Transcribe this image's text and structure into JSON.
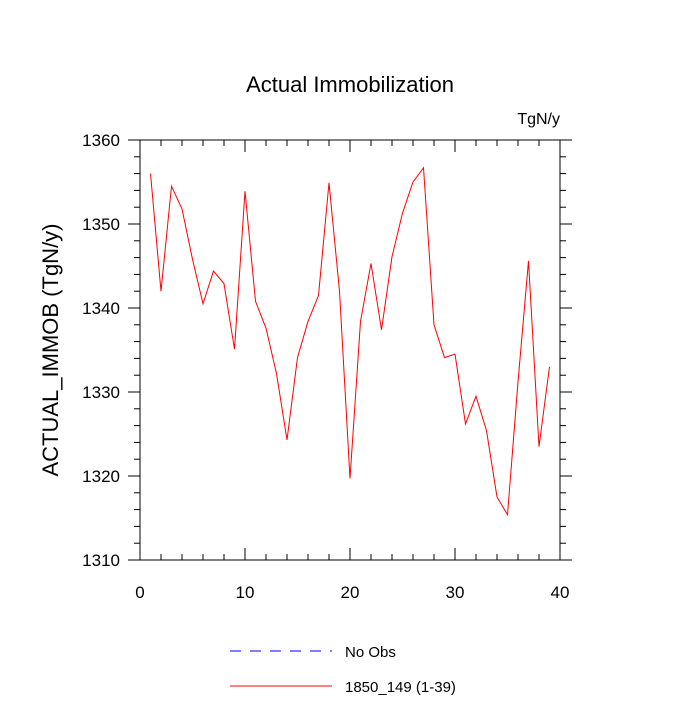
{
  "chart_data": {
    "type": "line",
    "title": "Actual Immobilization",
    "units_label": "TgN/y",
    "xlabel": "",
    "ylabel": "ACTUAL_IMMOB  (TgN/y)",
    "xlim": [
      0,
      40
    ],
    "ylim": [
      1310,
      1360
    ],
    "x_ticks": [
      0,
      10,
      20,
      30,
      40
    ],
    "y_ticks": [
      1310,
      1320,
      1330,
      1340,
      1350,
      1360
    ],
    "grid": false,
    "legend_position": "bottom",
    "legend": [
      {
        "label": "No Obs",
        "color": "#0000ff",
        "style": "dashed"
      },
      {
        "label": "1850_149 (1-39)",
        "color": "#ff0000",
        "style": "solid"
      }
    ],
    "series": [
      {
        "name": "1850_149 (1-39)",
        "color": "#ff0000",
        "x": [
          1,
          2,
          3,
          4,
          5,
          6,
          7,
          8,
          9,
          10,
          11,
          12,
          13,
          14,
          15,
          16,
          17,
          18,
          19,
          20,
          21,
          22,
          23,
          24,
          25,
          26,
          27,
          28,
          29,
          30,
          31,
          32,
          33,
          34,
          35,
          36,
          37,
          38,
          39
        ],
        "y": [
          1356.0,
          1342.0,
          1354.5,
          1351.8,
          1345.8,
          1340.5,
          1344.4,
          1342.9,
          1335.1,
          1353.9,
          1340.8,
          1337.6,
          1332.2,
          1324.3,
          1334.1,
          1338.4,
          1341.5,
          1354.9,
          1342.0,
          1319.7,
          1338.4,
          1345.3,
          1337.4,
          1346.1,
          1351.3,
          1355.0,
          1356.7,
          1338.0,
          1334.1,
          1334.5,
          1326.2,
          1329.5,
          1325.4,
          1317.5,
          1315.4,
          1331.2,
          1345.6,
          1323.5,
          1333.0
        ]
      }
    ]
  }
}
